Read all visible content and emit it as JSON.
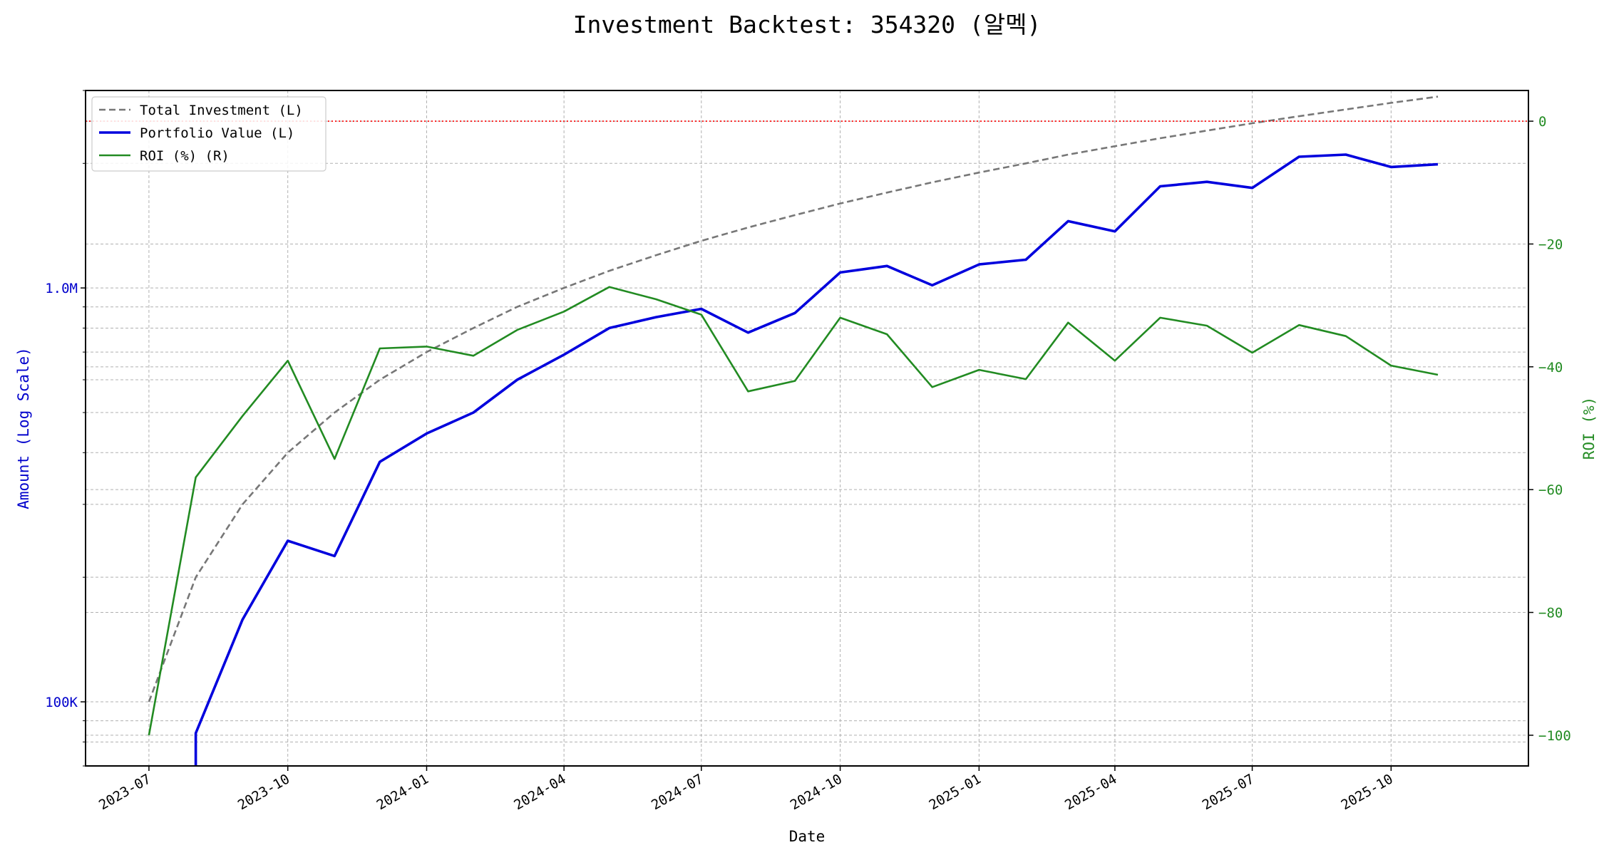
{
  "chart_data": {
    "type": "line",
    "title": "Investment Backtest: 354320 (알멕)",
    "xlabel": "Date",
    "ylabel_left": "Amount (Log Scale)",
    "ylabel_right": "ROI (%)",
    "left_axis": {
      "scale": "log",
      "range": [
        70000,
        3000000
      ],
      "ticks": [
        100000,
        1000000
      ],
      "tick_labels": [
        "100K",
        "1.0M"
      ],
      "color": "#0000cc"
    },
    "right_axis": {
      "scale": "linear",
      "range": [
        -105,
        5
      ],
      "ticks": [
        0,
        -20,
        -40,
        -60,
        -80,
        -100
      ],
      "tick_labels": [
        "0",
        "−20",
        "−40",
        "−60",
        "−80",
        "−100"
      ],
      "color": "#228b22"
    },
    "x_range": [
      "2023-05-20",
      "2025-12-31"
    ],
    "x_ticks": [
      "2023-07-01",
      "2023-10-01",
      "2024-01-01",
      "2024-04-01",
      "2024-07-01",
      "2024-10-01",
      "2025-01-01",
      "2025-04-01",
      "2025-07-01",
      "2025-10-01"
    ],
    "x_tick_labels": [
      "2023-07",
      "2023-10",
      "2024-01",
      "2024-04",
      "2024-07",
      "2024-10",
      "2025-01",
      "2025-04",
      "2025-07",
      "2025-10"
    ],
    "dates": [
      "2023-07-01",
      "2023-08-01",
      "2023-09-01",
      "2023-10-01",
      "2023-11-01",
      "2023-12-01",
      "2024-01-01",
      "2024-02-01",
      "2024-03-01",
      "2024-04-01",
      "2024-05-01",
      "2024-06-01",
      "2024-07-01",
      "2024-08-01",
      "2024-09-01",
      "2024-10-01",
      "2024-11-01",
      "2024-12-01",
      "2025-01-01",
      "2025-02-01",
      "2025-03-01",
      "2025-04-01",
      "2025-05-01",
      "2025-06-01",
      "2025-07-01",
      "2025-08-01",
      "2025-09-01",
      "2025-10-01",
      "2025-11-01"
    ],
    "series": [
      {
        "name": "Total Investment (L)",
        "axis": "left",
        "color": "#777777",
        "style": "dashed",
        "values": [
          100000,
          200000,
          300000,
          400000,
          500000,
          600000,
          700000,
          800000,
          900000,
          1000000,
          1100000,
          1200000,
          1300000,
          1400000,
          1500000,
          1600000,
          1700000,
          1800000,
          1900000,
          2000000,
          2100000,
          2200000,
          2300000,
          2400000,
          2500000,
          2600000,
          2700000,
          2800000,
          2900000
        ]
      },
      {
        "name": "Portfolio Value (L)",
        "axis": "left",
        "color": "#0000dd",
        "style": "solid",
        "values": [
          null,
          84000,
          158000,
          245000,
          225000,
          380000,
          445000,
          500000,
          600000,
          690000,
          800000,
          850000,
          890000,
          780000,
          870000,
          1090000,
          1130000,
          1015000,
          1140000,
          1170000,
          1450000,
          1370000,
          1760000,
          1805000,
          1745000,
          2075000,
          2100000,
          1960000,
          1990000
        ]
      },
      {
        "name": "ROI (%) (R)",
        "axis": "right",
        "color": "#228b22",
        "style": "solid",
        "values": [
          -100,
          -58,
          -48,
          -39,
          -55,
          -37,
          -36.7,
          -38.2,
          -34,
          -31,
          -27,
          -29,
          -31.5,
          -44,
          -42.3,
          -32,
          -34.7,
          -43.3,
          -40.5,
          -42,
          -32.8,
          -39,
          -32,
          -33.3,
          -37.7,
          -33.2,
          -35,
          -39.8,
          -41.3
        ]
      },
      {
        "name": "",
        "axis": "right",
        "color": "#ff0000",
        "style": "dotted",
        "constant": 0
      }
    ],
    "legend": "top-left",
    "grid": true
  }
}
